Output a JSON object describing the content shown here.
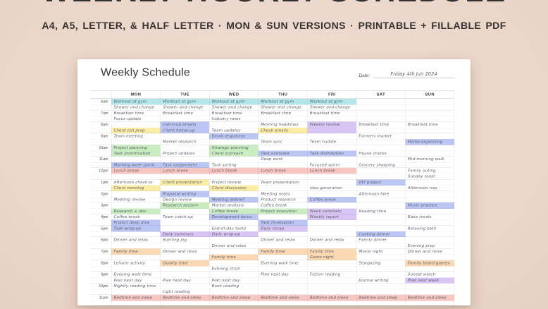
{
  "header": {
    "title": "WEEKLY HOURLY SCHEDULE",
    "subtitle": "A4, A5, LETTER, & HALF LETTER · MON & SUN VERSIONS · PRINTABLE + FILLABLE PDF"
  },
  "sheet": {
    "title": "Weekly Schedule",
    "date_label": "Date:",
    "date_value": "Friday 4th Jun 2024",
    "days": [
      "MON",
      "TUE",
      "WED",
      "THU",
      "FRI",
      "SAT",
      "SUN"
    ],
    "times": [
      "6am",
      "7am",
      "8am",
      "9am",
      "10am",
      "11am",
      "12pm",
      "1pm",
      "2pm",
      "3pm",
      "4pm",
      "5pm",
      "6pm",
      "7pm",
      "8pm",
      "9pm",
      "10pm",
      "11pm"
    ],
    "rows": [
      {
        "time": "6am",
        "cells": [
          [
            "Workout at gym",
            "cyan"
          ],
          [
            "Workout at gym",
            "cyan"
          ],
          [
            "Workout at gym",
            "cyan"
          ],
          [
            "Workout at gym",
            "cyan"
          ],
          [
            "Workout at gym",
            "cyan"
          ],
          null,
          null
        ]
      },
      {
        "time": "",
        "cells": [
          [
            "Shower and change"
          ],
          [
            "Shower and change"
          ],
          [
            "Shower and change"
          ],
          [
            "Shower and change"
          ],
          [
            "Shower and change"
          ],
          null,
          null
        ]
      },
      {
        "time": "7am",
        "cells": [
          [
            "Breakfast time"
          ],
          [
            "Breakfast time"
          ],
          [
            "Breakfast time"
          ],
          [
            "Breakfast time"
          ],
          [
            "Breakfast time"
          ],
          null,
          null
        ]
      },
      {
        "time": "",
        "cells": [
          [
            "Focus update"
          ],
          null,
          [
            "Industry news"
          ],
          null,
          null,
          null,
          null
        ]
      },
      {
        "time": "8am",
        "cells": [
          null,
          [
            "Catch-up emails",
            "blue"
          ],
          null,
          [
            "Morning headlines"
          ],
          [
            "Weekly review",
            "purple"
          ],
          [
            "Breakfast time"
          ],
          [
            "Breakfast time"
          ]
        ]
      },
      {
        "time": "",
        "cells": [
          [
            "Client call prep",
            "yellow"
          ],
          [
            "Client follow-up",
            "blue"
          ],
          [
            "Team updates"
          ],
          [
            "Check emails",
            "yellow"
          ],
          [
            "",
            "purple"
          ],
          null,
          null
        ]
      },
      {
        "time": "9am",
        "cells": [
          [
            "Team meeting"
          ],
          null,
          [
            "Email responses",
            "blue"
          ],
          null,
          null,
          [
            "Farmers market"
          ],
          null
        ]
      },
      {
        "time": "",
        "cells": [
          null,
          [
            "Market research"
          ],
          null,
          [
            "Team sync"
          ],
          [
            "Team huddle"
          ],
          null,
          [
            "Home organising",
            "blue"
          ]
        ]
      },
      {
        "time": "10am",
        "cells": [
          [
            "Project planning",
            "green"
          ],
          null,
          [
            "Strategy planning",
            "green"
          ],
          null,
          null,
          null,
          null
        ]
      },
      {
        "time": "",
        "cells": [
          [
            "Task prioritisation",
            "green"
          ],
          [
            "Project updates"
          ],
          [
            "Client outreach",
            "green"
          ],
          [
            "Task overview",
            "blue"
          ],
          [
            "Task distribution",
            "blue"
          ],
          [
            "House chores"
          ],
          null
        ]
      },
      {
        "time": "11am",
        "cells": [
          null,
          null,
          null,
          [
            "Deep work"
          ],
          null,
          null,
          [
            "Mid-morning walk"
          ]
        ]
      },
      {
        "time": "",
        "cells": [
          [
            "Morning work sprint",
            "blue"
          ],
          [
            "Task assignment",
            "blue"
          ],
          [
            "Task sorting"
          ],
          null,
          [
            "Focused sprint"
          ],
          [
            "Grocery shopping"
          ],
          null
        ]
      },
      {
        "time": "12pm",
        "cells": [
          [
            "Lunch break",
            "pink"
          ],
          [
            "Lunch break",
            "pink"
          ],
          [
            "Lunch break",
            "pink"
          ],
          [
            "Lunch break",
            "pink"
          ],
          [
            "Lunch break",
            "pink"
          ],
          null,
          [
            "Family outing"
          ]
        ]
      },
      {
        "time": "",
        "cells": [
          null,
          null,
          null,
          null,
          null,
          null,
          [
            "Sunday roast"
          ]
        ]
      },
      {
        "time": "1pm",
        "cells": [
          [
            "Afternoon check-in"
          ],
          [
            "Client presentation",
            "yellow"
          ],
          [
            "Project review"
          ],
          [
            "Team presentation"
          ],
          null,
          [
            "DIY project",
            "blue"
          ],
          null
        ]
      },
      {
        "time": "",
        "cells": [
          [
            "Client meeting",
            "yellow"
          ],
          null,
          [
            "Client discussion",
            "yellow"
          ],
          null,
          [
            "Idea generation"
          ],
          null,
          [
            "Afternoon nap"
          ]
        ]
      },
      {
        "time": "2pm",
        "cells": [
          null,
          [
            "Proposal writing",
            "blue"
          ],
          null,
          [
            "Meeting notes"
          ],
          null,
          [
            "Afternoon hike"
          ],
          null
        ]
      },
      {
        "time": "",
        "cells": [
          [
            "Meeting review"
          ],
          [
            "Design review"
          ],
          [
            "Meeting debrief",
            "blue"
          ],
          [
            "Product research"
          ],
          [
            "Coffee break",
            "blue"
          ],
          null,
          null
        ]
      },
      {
        "time": "3pm",
        "cells": [
          null,
          [
            "Research session",
            "green"
          ],
          [
            "Market analysis"
          ],
          [
            "Coffee break"
          ],
          null,
          null,
          [
            "Music practice",
            "blue"
          ]
        ]
      },
      {
        "time": "",
        "cells": [
          [
            "Research + dev",
            "green"
          ],
          null,
          [
            "Coffee break",
            "green"
          ],
          [
            "Project execution",
            "green"
          ],
          [
            "Week summary",
            "purple"
          ],
          [
            "Reading time"
          ],
          null
        ]
      },
      {
        "time": "4pm",
        "cells": [
          [
            "Coffee break"
          ],
          [
            "Team catch-up"
          ],
          [
            "Development focus",
            "blue"
          ],
          null,
          [
            "Weekly report",
            "purple"
          ],
          null,
          [
            "Bake treats"
          ]
        ]
      },
      {
        "time": "",
        "cells": [
          [
            "Project deep dive",
            "blue"
          ],
          null,
          null,
          [
            "Task finalisation",
            "blue"
          ],
          null,
          null,
          null
        ]
      },
      {
        "time": "5pm",
        "cells": [
          [
            "Task wrap-up",
            "blue"
          ],
          null,
          [
            "End-of-day tasks"
          ],
          [
            "Daily recap",
            "purple"
          ],
          null,
          null,
          [
            "Relaxing bath"
          ]
        ]
      },
      {
        "time": "",
        "cells": [
          null,
          [
            "Daily summary",
            "purple"
          ],
          [
            "Daily wrap-up",
            "purple"
          ],
          null,
          null,
          [
            "Cooking dinner",
            "blue"
          ],
          null
        ]
      },
      {
        "time": "6pm",
        "cells": [
          [
            "Dinner and relax"
          ],
          [
            "Evening jog"
          ],
          null,
          [
            "Dinner and relax"
          ],
          [
            "Dinner and relax"
          ],
          [
            "Family dinner"
          ],
          null
        ]
      },
      {
        "time": "",
        "cells": [
          null,
          null,
          [
            "Dinner and relax"
          ],
          null,
          null,
          null,
          [
            "Evening prep"
          ]
        ]
      },
      {
        "time": "7pm",
        "cells": [
          [
            "Family time",
            "peach"
          ],
          [
            "Dinner and relax"
          ],
          null,
          [
            "Family time",
            "peach"
          ],
          [
            "Family time",
            "peach"
          ],
          [
            "Movie night"
          ],
          [
            "Dinner and relax"
          ]
        ]
      },
      {
        "time": "",
        "cells": [
          null,
          null,
          [
            "Family time",
            "peach"
          ],
          null,
          [
            "Game night",
            "peach"
          ],
          null,
          null
        ]
      },
      {
        "time": "8pm",
        "cells": [
          [
            "Leisure activity"
          ],
          [
            "Quality time",
            "peach"
          ],
          null,
          [
            "Evening walk time"
          ],
          null,
          [
            "Stargazing"
          ],
          [
            "Family board games",
            "peach"
          ]
        ]
      },
      {
        "time": "",
        "cells": [
          null,
          null,
          [
            "Evening stroll"
          ],
          null,
          null,
          null,
          null
        ]
      },
      {
        "time": "9pm",
        "cells": [
          [
            "Evening walk time"
          ],
          null,
          null,
          [
            "Plan next day"
          ],
          [
            "Fiction reading"
          ],
          null,
          [
            "Sunset watch"
          ]
        ]
      },
      {
        "time": "",
        "cells": [
          [
            "Plan next day"
          ],
          [
            "Plan next day"
          ],
          [
            "Plan next day"
          ],
          null,
          null,
          [
            "Journal writing"
          ],
          [
            "Plan next week",
            "purple"
          ]
        ]
      },
      {
        "time": "10pm",
        "cells": [
          [
            "Nightly reading time"
          ],
          null,
          [
            "Book reading"
          ],
          null,
          null,
          null,
          null
        ]
      },
      {
        "time": "",
        "cells": [
          null,
          [
            "Light reading"
          ],
          null,
          null,
          null,
          null,
          null
        ]
      },
      {
        "time": "11pm",
        "cells": [
          [
            "Bedtime and sleep",
            "pink"
          ],
          [
            "Bedtime and sleep",
            "pink"
          ],
          [
            "Bedtime and sleep",
            "pink"
          ],
          [
            "Bedtime and sleep",
            "pink"
          ],
          [
            "Bedtime and sleep",
            "pink"
          ],
          [
            "Bedtime and sleep",
            "pink"
          ],
          [
            "Bedtime and sleep",
            "pink"
          ]
        ]
      },
      {
        "time": "",
        "cells": [
          null,
          null,
          null,
          null,
          null,
          null,
          null
        ]
      }
    ]
  },
  "colors": {
    "cyan": "#b4e6ec",
    "blue": "#bcc6f4",
    "yellow": "#fdeca6",
    "green": "#c9ecc1",
    "pink": "#f8c6c1",
    "purple": "#d9c5f3",
    "peach": "#fad8b1",
    "background": "#ebd6ca",
    "ink": "#5a5f6a",
    "title": "#343130"
  }
}
